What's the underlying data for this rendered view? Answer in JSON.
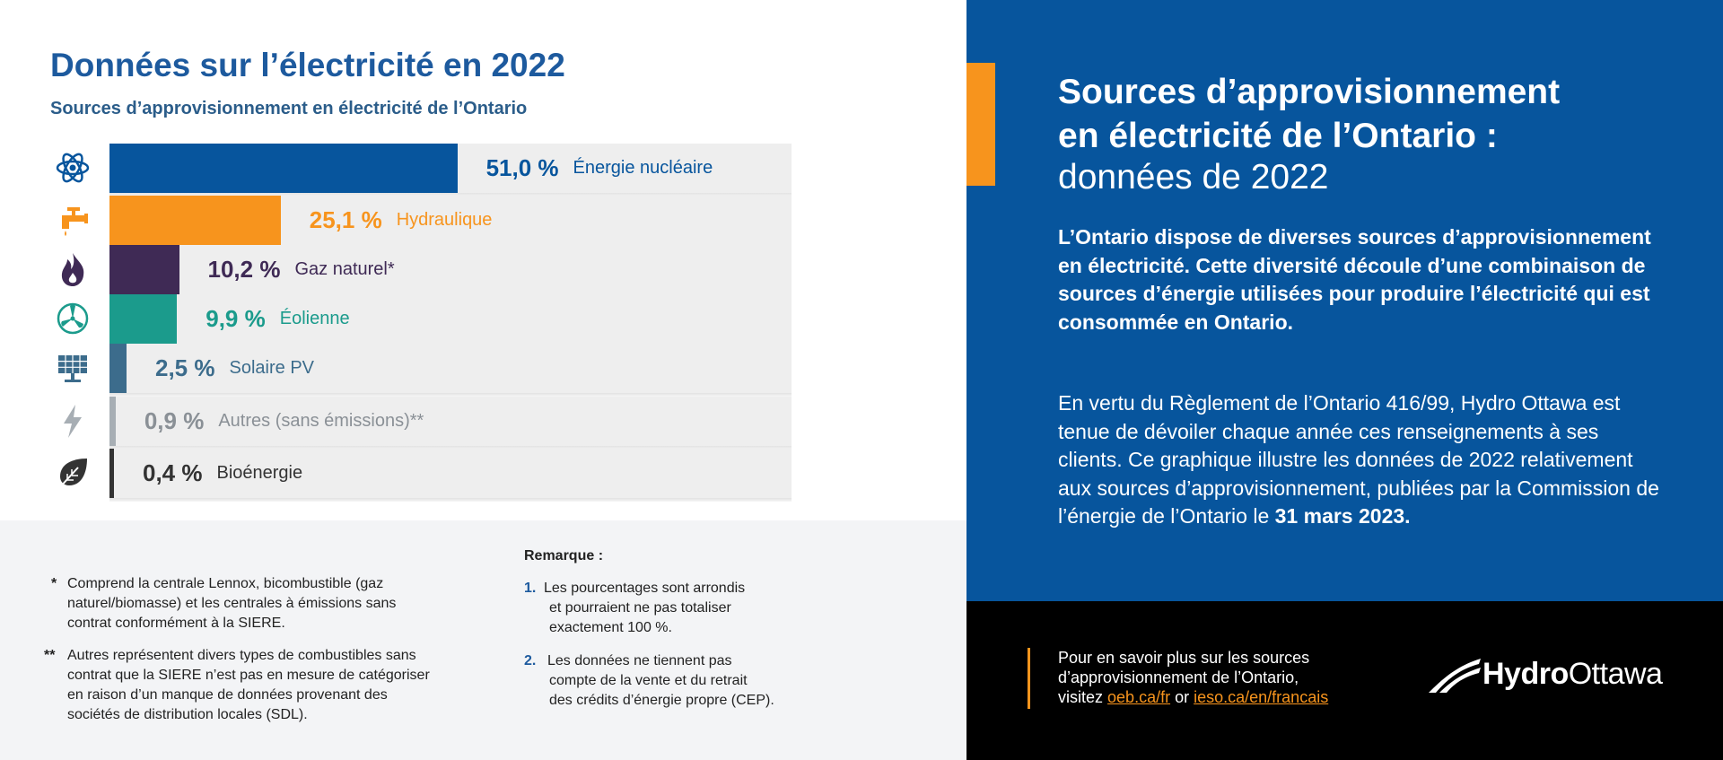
{
  "header": {
    "title": "Données sur l’électricité en 2022",
    "subtitle": "Sources d’approvisionnement en électricité de l’Ontario"
  },
  "chart_data": {
    "type": "bar",
    "orientation": "horizontal",
    "title": "Données sur l’électricité en 2022",
    "subtitle": "Sources d’approvisionnement en électricité de l’Ontario",
    "xlim": [
      0,
      100
    ],
    "categories": [
      "Énergie nucléaire",
      "Hydraulique",
      "Gaz naturel*",
      "Éolienne",
      "Solaire PV",
      "Autres (sans émissions)**",
      "Bioénergie"
    ],
    "values": [
      51.0,
      25.1,
      10.2,
      9.9,
      2.5,
      0.9,
      0.4
    ],
    "labels": [
      "51,0 %",
      "25,1 %",
      "10,2 %",
      "9,9 %",
      "2,5 %",
      "0,9 %",
      "0,4 %"
    ],
    "colors": [
      "#07559d",
      "#f7941d",
      "#3f2a55",
      "#1b9b8c",
      "#3c6c8c",
      "#a7aeb4",
      "#333333"
    ],
    "icons": [
      "atom-icon",
      "faucet-icon",
      "flame-icon",
      "wind-turbine-icon",
      "solar-panel-icon",
      "lightning-icon",
      "leaf-icon"
    ]
  },
  "notes": {
    "star1_mark": "*",
    "star1_text": [
      "Comprend la centrale Lennox, bicombustible (gaz",
      "naturel/biomasse) et les centrales à émissions sans",
      "contrat conformément à la SIERE."
    ],
    "star2_mark": "**",
    "star2_text": [
      "Autres représentent divers types de combustibles sans",
      "contrat que la SIERE n’est pas en mesure de catégoriser",
      "en raison d’un manque de données provenant des",
      "sociétés de distribution locales (SDL)."
    ],
    "remark_title": "Remarque :",
    "remark1_num": "1.",
    "remark1_text": [
      "Les pourcentages sont arrondis",
      "et pourraient ne pas totaliser",
      "exactement 100 %."
    ],
    "remark2_num": "2.",
    "remark2_text": [
      "Les données ne tiennent pas",
      "compte de la vente et du retrait",
      "des crédits d’énergie propre (CEP)."
    ]
  },
  "panel": {
    "title_line1": "Sources d’approvisionnement",
    "title_line2": "en électricité de l’Ontario :",
    "title_line3": "données de 2022",
    "lead": "L’Ontario dispose de diverses sources d’approvisionnement en électricité. Cette diversité découle d’une combinaison de sources d’énergie utilisées pour produire l’électricité qui est consommée en Ontario.",
    "body": "En vertu du Règlement de l’Ontario 416/99, Hydro Ottawa est tenue de dévoiler chaque année ces renseignements à ses clients. Ce graphique illustre les données de 2022 relativement aux sources d’approvisionnement, publiées par la Commission de l’énergie de l’Ontario le",
    "body_date": "31 mars 2023."
  },
  "footer": {
    "line1": "Pour en savoir plus sur les sources",
    "line2": "d’approvisionnement de l’Ontario,",
    "line3_prefix": "visitez",
    "link1": "oeb.ca/fr",
    "or": "or",
    "link2": "ieso.ca/en/francais",
    "logo_bold": "Hydro",
    "logo_regular": "Ottawa"
  },
  "colors": {
    "brand_blue": "#07559d",
    "accent_orange": "#f7941d"
  }
}
